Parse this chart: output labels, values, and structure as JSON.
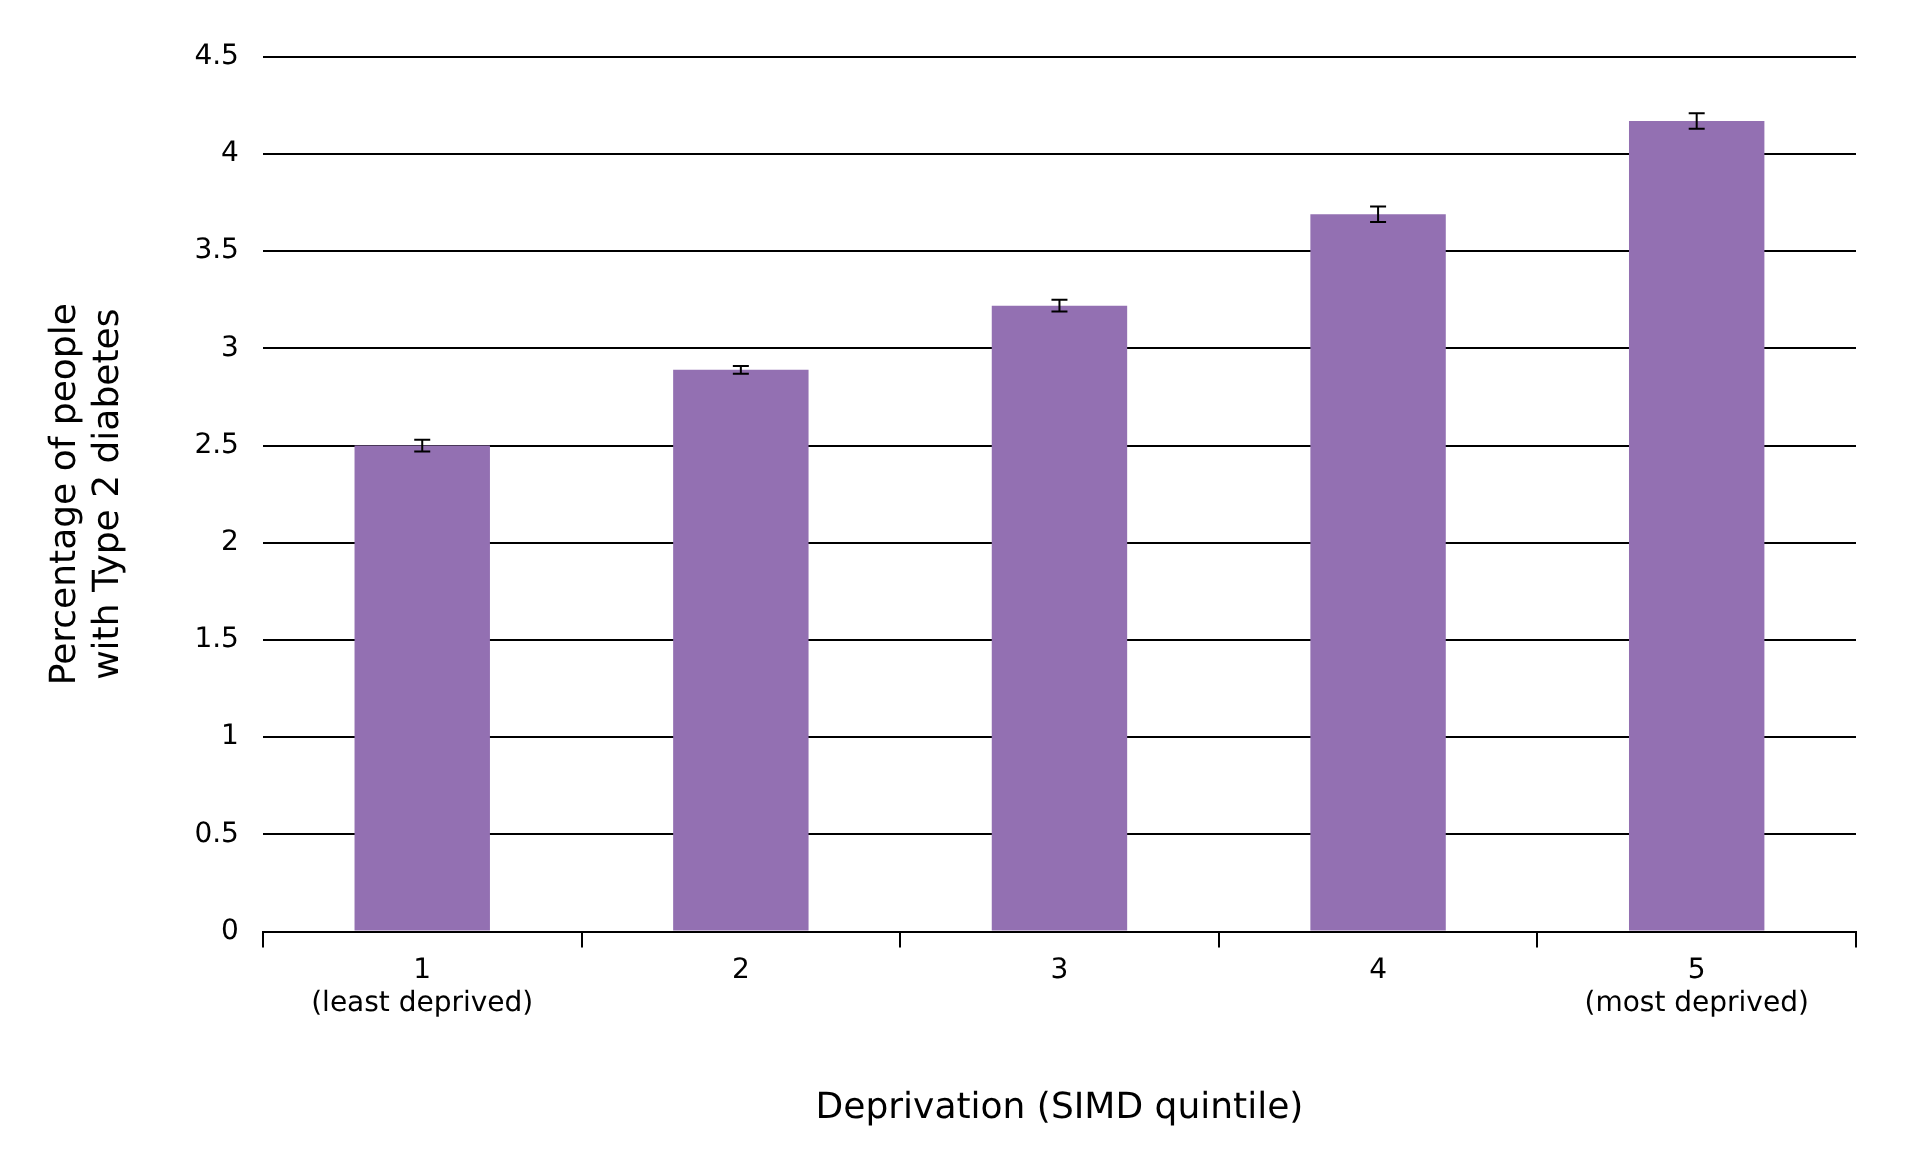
{
  "chart_data": {
    "type": "bar",
    "xlabel": "Deprivation (SIMD quintile)",
    "ylabel": "Percentage of people\nwith Type 2 diabetes",
    "categories": [
      "1\n(least deprived)",
      "2",
      "3",
      "4",
      "5\n(most deprived)"
    ],
    "values": [
      2.5,
      2.89,
      3.22,
      3.69,
      4.17
    ],
    "errors": [
      0.03,
      0.02,
      0.03,
      0.04,
      0.04
    ],
    "color": "#9370b2",
    "ylim": [
      0,
      4.5
    ],
    "yticks": [
      0,
      0.5,
      1,
      1.5,
      2,
      2.5,
      3,
      3.5,
      4,
      4.5
    ],
    "grid": "y"
  }
}
